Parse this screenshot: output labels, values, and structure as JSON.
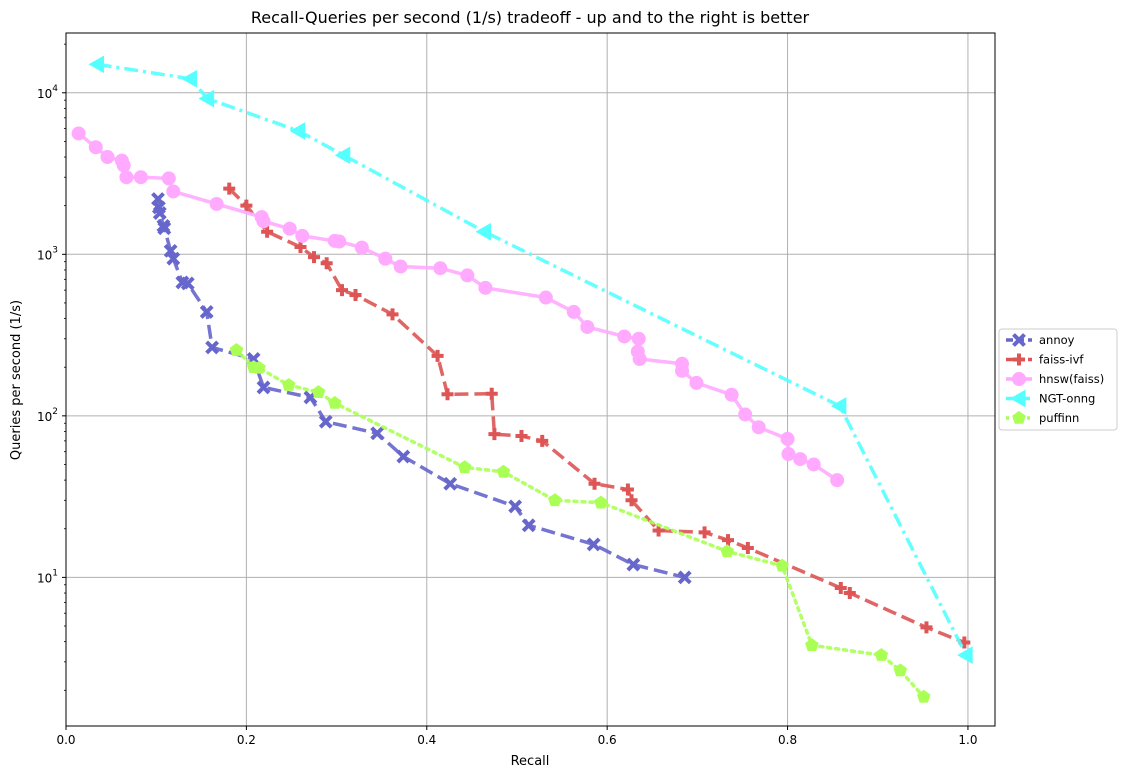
{
  "chart_data": {
    "type": "line",
    "title": "Recall-Queries per second (1/s) tradeoff - up and to the right is better",
    "xlabel": "Recall",
    "ylabel": "Queries per second (1/s)",
    "xlim": [
      0.0,
      1.03
    ],
    "ylim_log10": [
      0.08,
      4.37
    ],
    "y_scale": "log",
    "grid": true,
    "legend_position": "right",
    "x_ticks": [
      0.0,
      0.2,
      0.4,
      0.6,
      0.8,
      1.0
    ],
    "x_tick_labels": [
      "0.0",
      "0.2",
      "0.4",
      "0.6",
      "0.8",
      "1.0"
    ],
    "y_ticks": [
      10,
      100,
      1000,
      10000
    ],
    "y_tick_labels": [
      {
        "base": "10",
        "exp": "1"
      },
      {
        "base": "10",
        "exp": "2"
      },
      {
        "base": "10",
        "exp": "3"
      },
      {
        "base": "10",
        "exp": "4"
      }
    ],
    "series": [
      {
        "name": "annoy",
        "color": "#6666cc",
        "linestyle": "dashed",
        "marker": "x",
        "points": [
          [
            0.102,
            2200
          ],
          [
            0.103,
            1950
          ],
          [
            0.104,
            1800
          ],
          [
            0.108,
            1500
          ],
          [
            0.109,
            1450
          ],
          [
            0.116,
            1050
          ],
          [
            0.119,
            940
          ],
          [
            0.129,
            670
          ],
          [
            0.135,
            660
          ],
          [
            0.156,
            440
          ],
          [
            0.162,
            265
          ],
          [
            0.208,
            225
          ],
          [
            0.219,
            150
          ],
          [
            0.271,
            130
          ],
          [
            0.288,
            92
          ],
          [
            0.345,
            78
          ],
          [
            0.374,
            56
          ],
          [
            0.426,
            38
          ],
          [
            0.498,
            27.5
          ],
          [
            0.513,
            21
          ],
          [
            0.585,
            16
          ],
          [
            0.629,
            12
          ],
          [
            0.686,
            10
          ]
        ]
      },
      {
        "name": "faiss-ivf",
        "color": "#dd5555",
        "linestyle": "dashed",
        "marker": "plus",
        "points": [
          [
            0.181,
            2550
          ],
          [
            0.2,
            2000
          ],
          [
            0.223,
            1380
          ],
          [
            0.26,
            1110
          ],
          [
            0.275,
            960
          ],
          [
            0.289,
            880
          ],
          [
            0.306,
            600
          ],
          [
            0.321,
            560
          ],
          [
            0.362,
            425
          ],
          [
            0.412,
            235
          ],
          [
            0.423,
            136
          ],
          [
            0.472,
            137
          ],
          [
            0.475,
            77
          ],
          [
            0.505,
            75
          ],
          [
            0.528,
            70
          ],
          [
            0.586,
            38
          ],
          [
            0.623,
            35
          ],
          [
            0.627,
            30
          ],
          [
            0.657,
            19.5
          ],
          [
            0.708,
            19
          ],
          [
            0.734,
            17
          ],
          [
            0.756,
            15.2
          ],
          [
            0.859,
            8.6
          ],
          [
            0.869,
            8.0
          ],
          [
            0.954,
            4.9
          ],
          [
            0.996,
            3.95
          ]
        ]
      },
      {
        "name": "hnsw(faiss)",
        "color": "#ffaaff",
        "linestyle": "solid",
        "marker": "circle",
        "points": [
          [
            0.014,
            5600
          ],
          [
            0.033,
            4600
          ],
          [
            0.046,
            4000
          ],
          [
            0.062,
            3800
          ],
          [
            0.064,
            3550
          ],
          [
            0.067,
            3000
          ],
          [
            0.083,
            3000
          ],
          [
            0.114,
            2950
          ],
          [
            0.119,
            2450
          ],
          [
            0.167,
            2050
          ],
          [
            0.217,
            1700
          ],
          [
            0.219,
            1600
          ],
          [
            0.248,
            1440
          ],
          [
            0.262,
            1300
          ],
          [
            0.298,
            1210
          ],
          [
            0.303,
            1200
          ],
          [
            0.328,
            1100
          ],
          [
            0.354,
            940
          ],
          [
            0.371,
            840
          ],
          [
            0.415,
            820
          ],
          [
            0.445,
            740
          ],
          [
            0.465,
            620
          ],
          [
            0.532,
            540
          ],
          [
            0.563,
            440
          ],
          [
            0.578,
            355
          ],
          [
            0.619,
            310
          ],
          [
            0.635,
            300
          ],
          [
            0.634,
            250
          ],
          [
            0.636,
            225
          ],
          [
            0.683,
            210
          ],
          [
            0.683,
            190
          ],
          [
            0.699,
            160
          ],
          [
            0.738,
            135
          ],
          [
            0.753,
            102
          ],
          [
            0.768,
            85
          ],
          [
            0.8,
            72
          ],
          [
            0.801,
            58
          ],
          [
            0.814,
            54
          ],
          [
            0.829,
            50
          ],
          [
            0.855,
            40
          ]
        ]
      },
      {
        "name": "NGT-onng",
        "color": "#55ffff",
        "linestyle": "dashdot",
        "marker": "triangle-left",
        "points": [
          [
            0.035,
            15000
          ],
          [
            0.138,
            12200
          ],
          [
            0.157,
            9200
          ],
          [
            0.258,
            5800
          ],
          [
            0.308,
            4100
          ],
          [
            0.464,
            1380
          ],
          [
            0.858,
            115
          ],
          [
            0.998,
            3.3
          ]
        ]
      },
      {
        "name": "puffinn",
        "color": "#aaff55",
        "linestyle": "dotted",
        "marker": "pentagon",
        "points": [
          [
            0.189,
            255
          ],
          [
            0.208,
            200
          ],
          [
            0.214,
            198
          ],
          [
            0.247,
            155
          ],
          [
            0.28,
            140
          ],
          [
            0.298,
            120
          ],
          [
            0.442,
            48
          ],
          [
            0.485,
            45
          ],
          [
            0.542,
            30
          ],
          [
            0.593,
            29
          ],
          [
            0.733,
            14.5
          ],
          [
            0.794,
            11.8
          ],
          [
            0.827,
            3.8
          ],
          [
            0.904,
            3.3
          ],
          [
            0.925,
            2.65
          ],
          [
            0.951,
            1.82
          ]
        ]
      }
    ]
  }
}
